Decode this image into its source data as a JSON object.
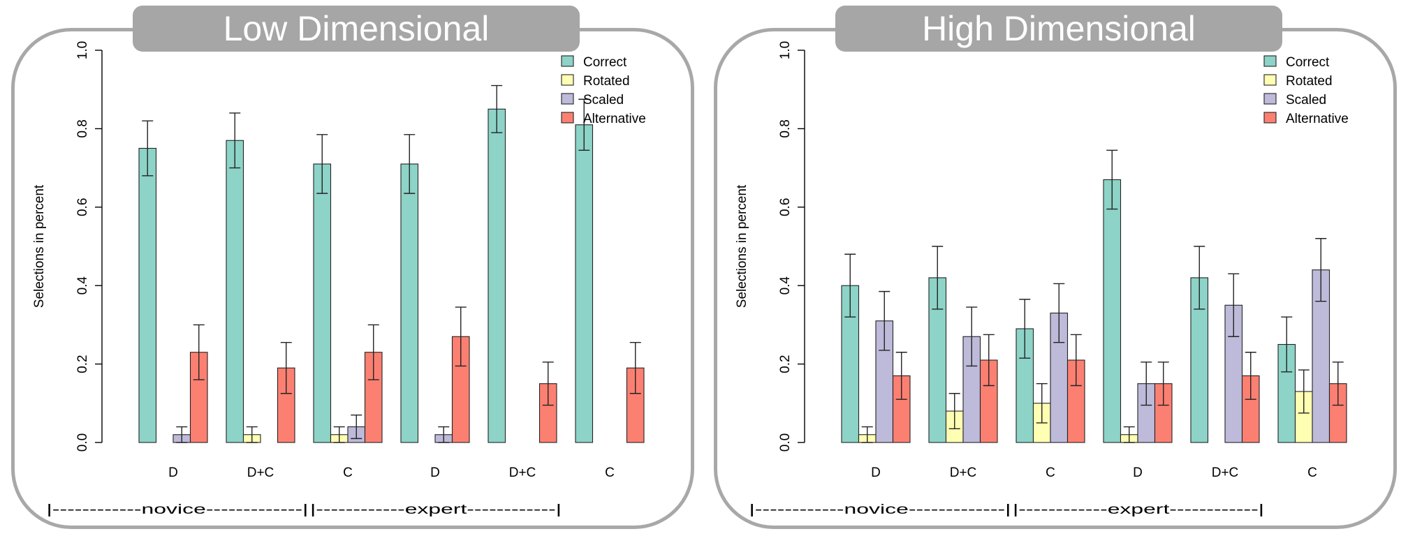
{
  "chart_data": [
    {
      "type": "bar",
      "title": "Low Dimensional",
      "ylabel": "Selections in percent",
      "xlabel": "",
      "ylim": [
        0,
        1.0
      ],
      "yticks": [
        "0.0",
        "0.2",
        "0.4",
        "0.6",
        "0.8",
        "1.0"
      ],
      "categories": [
        "D",
        "D+C",
        "C",
        "D",
        "D+C",
        "C"
      ],
      "groups": [
        {
          "label": "|------------novice-------------|"
        },
        {
          "label": "|------------expert------------|"
        }
      ],
      "legend_position": "top-right",
      "series": [
        {
          "name": "Correct",
          "color": "#8dd3c7",
          "values": [
            0.75,
            0.77,
            0.71,
            0.71,
            0.85,
            0.81
          ],
          "error": [
            0.07,
            0.07,
            0.075,
            0.075,
            0.06,
            0.065
          ]
        },
        {
          "name": "Rotated",
          "color": "#ffffb3",
          "values": [
            0.0,
            0.02,
            0.02,
            0.0,
            0.0,
            0.0
          ],
          "error": [
            0.0,
            0.02,
            0.02,
            0.0,
            0.0,
            0.0
          ]
        },
        {
          "name": "Scaled",
          "color": "#bebada",
          "values": [
            0.02,
            0.0,
            0.04,
            0.02,
            0.0,
            0.0
          ],
          "error": [
            0.02,
            0.0,
            0.03,
            0.02,
            0.0,
            0.0
          ]
        },
        {
          "name": "Alternative",
          "color": "#fb8072",
          "values": [
            0.23,
            0.19,
            0.23,
            0.27,
            0.15,
            0.19
          ],
          "error": [
            0.07,
            0.065,
            0.07,
            0.075,
            0.055,
            0.065
          ]
        }
      ]
    },
    {
      "type": "bar",
      "title": "High Dimensional",
      "ylabel": "Selections in percent",
      "xlabel": "",
      "ylim": [
        0,
        1.0
      ],
      "yticks": [
        "0.0",
        "0.2",
        "0.4",
        "0.6",
        "0.8",
        "1.0"
      ],
      "categories": [
        "D",
        "D+C",
        "C",
        "D",
        "D+C",
        "C"
      ],
      "groups": [
        {
          "label": "|------------novice-------------|"
        },
        {
          "label": "|------------expert------------|"
        }
      ],
      "legend_position": "top-right",
      "series": [
        {
          "name": "Correct",
          "color": "#8dd3c7",
          "values": [
            0.4,
            0.42,
            0.29,
            0.67,
            0.42,
            0.25
          ],
          "error": [
            0.08,
            0.08,
            0.075,
            0.075,
            0.08,
            0.07
          ]
        },
        {
          "name": "Rotated",
          "color": "#ffffb3",
          "values": [
            0.02,
            0.08,
            0.1,
            0.02,
            0.0,
            0.13
          ],
          "error": [
            0.02,
            0.045,
            0.05,
            0.02,
            0.0,
            0.055
          ]
        },
        {
          "name": "Scaled",
          "color": "#bebada",
          "values": [
            0.31,
            0.27,
            0.33,
            0.15,
            0.35,
            0.44
          ],
          "error": [
            0.075,
            0.075,
            0.075,
            0.055,
            0.08,
            0.08
          ]
        },
        {
          "name": "Alternative",
          "color": "#fb8072",
          "values": [
            0.17,
            0.21,
            0.21,
            0.15,
            0.17,
            0.15
          ],
          "error": [
            0.06,
            0.065,
            0.065,
            0.055,
            0.06,
            0.055
          ]
        }
      ]
    }
  ]
}
